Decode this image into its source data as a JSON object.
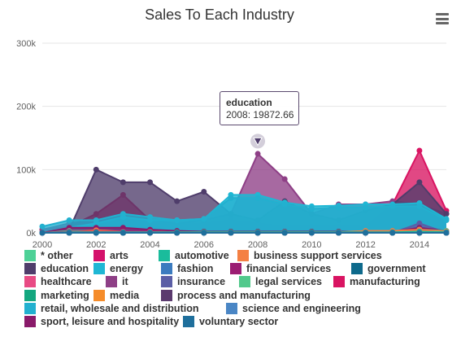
{
  "title": "Sales To Each Industry",
  "menu_icon": "hamburger-menu-icon",
  "tooltip": {
    "series": "education",
    "text": "2008: 19872.66"
  },
  "chart_data": {
    "type": "area",
    "title": "Sales To Each Industry",
    "xlabel": "",
    "ylabel": "",
    "xlim": [
      2000,
      2015
    ],
    "ylim": [
      0,
      300000
    ],
    "x_ticks": [
      "2000",
      "2002",
      "2004",
      "2006",
      "2008",
      "2010",
      "2012",
      "2014"
    ],
    "y_ticks": [
      "0k",
      "100k",
      "200k",
      "300k"
    ],
    "stacked": false,
    "legend_position": "bottom",
    "x": [
      2000,
      2001,
      2002,
      2003,
      2004,
      2005,
      2006,
      2007,
      2008,
      2009,
      2010,
      2011,
      2012,
      2013,
      2014,
      2015
    ],
    "series": [
      {
        "name": "* other",
        "color": "#4ed197",
        "values": [
          0,
          3000,
          3000,
          2000,
          2000,
          1000,
          1000,
          1000,
          1000,
          1000,
          1000,
          1000,
          1000,
          1000,
          5000,
          3000
        ]
      },
      {
        "name": "arts",
        "color": "#d4116b",
        "values": [
          0,
          2000,
          2000,
          2000,
          2000,
          1000,
          1000,
          1000,
          1000,
          1000,
          1000,
          1000,
          1000,
          1000,
          2000,
          1000
        ]
      },
      {
        "name": "automotive",
        "color": "#1abc9c",
        "values": [
          0,
          1000,
          1000,
          1000,
          1000,
          1000,
          1000,
          1000,
          1000,
          1000,
          1000,
          1000,
          1000,
          1000,
          2000,
          1000
        ]
      },
      {
        "name": "business support services",
        "color": "#f48043",
        "values": [
          0,
          1000,
          4000,
          2000,
          2000,
          1000,
          1000,
          1000,
          1000,
          1000,
          1000,
          1000,
          3000,
          3000,
          5000,
          2000
        ]
      },
      {
        "name": "education",
        "color": "#4f3d6b",
        "values": [
          0,
          5000,
          100000,
          80000,
          80000,
          50000,
          65000,
          30000,
          19872.66,
          50000,
          30000,
          20000,
          35000,
          45000,
          80000,
          30000
        ]
      },
      {
        "name": "energy",
        "color": "#1fb7d4",
        "values": [
          0,
          8000,
          15000,
          25000,
          20000,
          20000,
          22000,
          60000,
          60000,
          48000,
          42000,
          43000,
          45000,
          45000,
          47000,
          22000
        ]
      },
      {
        "name": "fashion",
        "color": "#3b7bbf",
        "values": [
          0,
          0,
          0,
          0,
          0,
          0,
          0,
          0,
          0,
          0,
          0,
          0,
          0,
          0,
          0,
          0
        ]
      },
      {
        "name": "financial services",
        "color": "#9b1d72",
        "values": [
          0,
          0,
          0,
          0,
          0,
          0,
          0,
          0,
          0,
          0,
          0,
          0,
          0,
          0,
          0,
          0
        ]
      },
      {
        "name": "government",
        "color": "#0e6a8c",
        "values": [
          0,
          0,
          0,
          0,
          0,
          0,
          0,
          0,
          0,
          0,
          0,
          0,
          0,
          0,
          0,
          0
        ]
      },
      {
        "name": "healthcare",
        "color": "#e84b84",
        "values": [
          0,
          0,
          0,
          0,
          0,
          0,
          0,
          0,
          0,
          0,
          0,
          0,
          0,
          0,
          0,
          0
        ]
      },
      {
        "name": "it",
        "color": "#8e3f86",
        "values": [
          5000,
          15000,
          20000,
          25000,
          20000,
          15000,
          20000,
          30000,
          125000,
          85000,
          30000,
          45000,
          45000,
          50000,
          45000,
          30000
        ]
      },
      {
        "name": "insurance",
        "color": "#5b5ea6",
        "values": [
          0,
          0,
          0,
          0,
          0,
          0,
          0,
          0,
          0,
          0,
          0,
          0,
          0,
          0,
          15000,
          0
        ]
      },
      {
        "name": "legal services",
        "color": "#52c98c",
        "values": [
          0,
          0,
          0,
          0,
          0,
          0,
          0,
          0,
          0,
          0,
          0,
          0,
          0,
          0,
          0,
          0
        ]
      },
      {
        "name": "manufacturing",
        "color": "#d91462",
        "values": [
          5000,
          10000,
          30000,
          60000,
          20000,
          15000,
          15000,
          20000,
          15000,
          10000,
          10000,
          10000,
          10000,
          45000,
          130000,
          35000
        ]
      },
      {
        "name": "marketing",
        "color": "#14a77f",
        "values": [
          0,
          0,
          0,
          0,
          0,
          0,
          0,
          0,
          0,
          0,
          0,
          0,
          0,
          0,
          0,
          0
        ]
      },
      {
        "name": "media",
        "color": "#f58c2a",
        "values": [
          0,
          0,
          0,
          0,
          0,
          0,
          0,
          0,
          0,
          0,
          0,
          0,
          0,
          0,
          0,
          0
        ]
      },
      {
        "name": "process and manufacturing",
        "color": "#5b3a6e",
        "values": [
          0,
          0,
          0,
          0,
          0,
          0,
          0,
          0,
          0,
          0,
          0,
          0,
          0,
          0,
          0,
          0
        ]
      },
      {
        "name": "retail, wholesale and distribution",
        "color": "#22b0cf",
        "values": [
          10000,
          20000,
          20000,
          30000,
          25000,
          20000,
          22000,
          55000,
          55000,
          45000,
          38000,
          40000,
          40000,
          42000,
          42000,
          20000
        ]
      },
      {
        "name": "science and engineering",
        "color": "#4a86c5",
        "values": [
          0,
          0,
          0,
          0,
          0,
          0,
          0,
          0,
          0,
          0,
          0,
          0,
          0,
          0,
          0,
          0
        ]
      },
      {
        "name": "sport, leisure and hospitality",
        "color": "#8a1a6a",
        "values": [
          0,
          8000,
          8000,
          8000,
          5000,
          3000,
          2000,
          2000,
          2000,
          2000,
          2000,
          2000,
          2000,
          2000,
          8000,
          3000
        ]
      },
      {
        "name": "voluntary sector",
        "color": "#1f6f9c",
        "values": [
          0,
          0,
          0,
          0,
          0,
          0,
          0,
          0,
          0,
          0,
          0,
          0,
          0,
          0,
          0,
          0
        ]
      }
    ]
  }
}
